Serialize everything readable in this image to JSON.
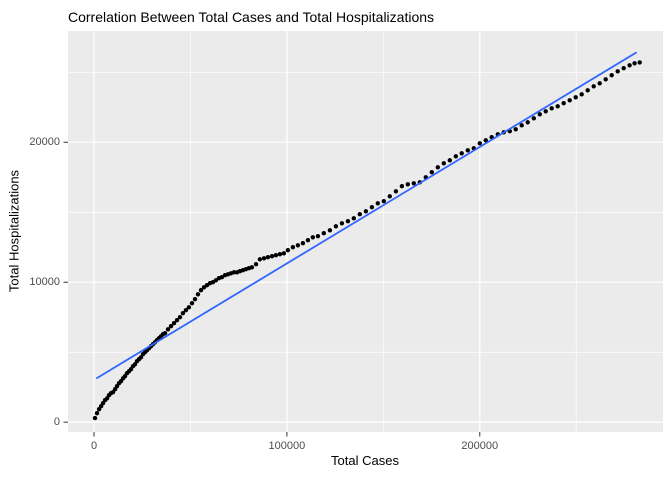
{
  "title": "Correlation Between Total Cases and Total Hospitalizations",
  "axes": {
    "x": {
      "label": "Total Cases",
      "tick_labels": [
        "0",
        "100000",
        "200000"
      ]
    },
    "y": {
      "label": "Total Hospitalizations",
      "tick_labels": [
        "0",
        "10000",
        "20000"
      ]
    }
  },
  "colors": {
    "panel_bg": "#EBEBEB",
    "grid": "#FFFFFF",
    "point": "#000000",
    "fit_line": "#3366FF",
    "tick_text": "#4D4D4D",
    "tick_mark": "#333333",
    "title_text": "#000000"
  },
  "chart_data": {
    "type": "scatter",
    "title": "Correlation Between Total Cases and Total Hospitalizations",
    "xlabel": "Total Cases",
    "ylabel": "Total Hospitalizations",
    "xlim": [
      -13500,
      295000
    ],
    "ylim": [
      -700,
      27950
    ],
    "x_ticks": [
      0,
      100000,
      200000
    ],
    "y_ticks": [
      0,
      10000,
      20000
    ],
    "x_minor_ticks": [
      50000,
      150000,
      250000
    ],
    "y_minor_ticks": [
      5000,
      15000,
      25000
    ],
    "grid": "on",
    "legend": "none",
    "series": [
      {
        "name": "observations",
        "type": "scatter",
        "color": "#000000",
        "points": [
          [
            500,
            290
          ],
          [
            1550,
            640
          ],
          [
            2600,
            930
          ],
          [
            3650,
            1140
          ],
          [
            4650,
            1360
          ],
          [
            5700,
            1570
          ],
          [
            6750,
            1710
          ],
          [
            7770,
            1930
          ],
          [
            8800,
            2070
          ],
          [
            9850,
            2140
          ],
          [
            10900,
            2360
          ],
          [
            11900,
            2570
          ],
          [
            12950,
            2790
          ],
          [
            14000,
            2930
          ],
          [
            15050,
            3140
          ],
          [
            16050,
            3290
          ],
          [
            17100,
            3500
          ],
          [
            18150,
            3640
          ],
          [
            19150,
            3790
          ],
          [
            20200,
            4000
          ],
          [
            21250,
            4140
          ],
          [
            22300,
            4360
          ],
          [
            23300,
            4500
          ],
          [
            24350,
            4640
          ],
          [
            25400,
            4860
          ],
          [
            26400,
            5000
          ],
          [
            27450,
            5140
          ],
          [
            28500,
            5290
          ],
          [
            29550,
            5430
          ],
          [
            30550,
            5570
          ],
          [
            31600,
            5710
          ],
          [
            32650,
            5860
          ],
          [
            33700,
            6000
          ],
          [
            34700,
            6140
          ],
          [
            35750,
            6290
          ],
          [
            36800,
            6360
          ],
          [
            38350,
            6640
          ],
          [
            39900,
            6860
          ],
          [
            41450,
            7070
          ],
          [
            43000,
            7290
          ],
          [
            44550,
            7500
          ],
          [
            46100,
            7790
          ],
          [
            47650,
            8000
          ],
          [
            49200,
            8210
          ],
          [
            50800,
            8500
          ],
          [
            52350,
            8790
          ],
          [
            53900,
            9140
          ],
          [
            55450,
            9430
          ],
          [
            57000,
            9640
          ],
          [
            58550,
            9790
          ],
          [
            60100,
            9930
          ],
          [
            61650,
            10000
          ],
          [
            63200,
            10140
          ],
          [
            64750,
            10290
          ],
          [
            66300,
            10360
          ],
          [
            67900,
            10500
          ],
          [
            69450,
            10570
          ],
          [
            71000,
            10640
          ],
          [
            72550,
            10710
          ],
          [
            74100,
            10710
          ],
          [
            75650,
            10790
          ],
          [
            77200,
            10860
          ],
          [
            78750,
            10930
          ],
          [
            80300,
            11000
          ],
          [
            81850,
            11070
          ],
          [
            83950,
            11290
          ],
          [
            86000,
            11640
          ],
          [
            88100,
            11710
          ],
          [
            90150,
            11790
          ],
          [
            92250,
            11860
          ],
          [
            94300,
            11930
          ],
          [
            96350,
            12000
          ],
          [
            98450,
            12070
          ],
          [
            100500,
            12290
          ],
          [
            103100,
            12500
          ],
          [
            105700,
            12640
          ],
          [
            108300,
            12790
          ],
          [
            110900,
            13000
          ],
          [
            113450,
            13210
          ],
          [
            116050,
            13290
          ],
          [
            119150,
            13500
          ],
          [
            122300,
            13710
          ],
          [
            125400,
            14000
          ],
          [
            128500,
            14210
          ],
          [
            131600,
            14360
          ],
          [
            134700,
            14570
          ],
          [
            137800,
            14860
          ],
          [
            140950,
            15070
          ],
          [
            144050,
            15360
          ],
          [
            147150,
            15640
          ],
          [
            150250,
            15790
          ],
          [
            153350,
            16140
          ],
          [
            156500,
            16500
          ],
          [
            159600,
            16860
          ],
          [
            162700,
            17000
          ],
          [
            165800,
            17070
          ],
          [
            168900,
            17140
          ],
          [
            172000,
            17500
          ],
          [
            175150,
            17860
          ],
          [
            178250,
            18210
          ],
          [
            181350,
            18500
          ],
          [
            184450,
            18710
          ],
          [
            187550,
            19000
          ],
          [
            190650,
            19210
          ],
          [
            193800,
            19430
          ],
          [
            196900,
            19570
          ],
          [
            200000,
            19930
          ],
          [
            203100,
            20140
          ],
          [
            206200,
            20360
          ],
          [
            209350,
            20570
          ],
          [
            212450,
            20710
          ],
          [
            215550,
            20790
          ],
          [
            218650,
            20930
          ],
          [
            221750,
            21210
          ],
          [
            224850,
            21430
          ],
          [
            228000,
            21710
          ],
          [
            231100,
            22000
          ],
          [
            234200,
            22210
          ],
          [
            237300,
            22430
          ],
          [
            240400,
            22570
          ],
          [
            243500,
            22790
          ],
          [
            246650,
            23000
          ],
          [
            249750,
            23210
          ],
          [
            252850,
            23430
          ],
          [
            255950,
            23710
          ],
          [
            259050,
            24000
          ],
          [
            262200,
            24210
          ],
          [
            265300,
            24500
          ],
          [
            268400,
            24790
          ],
          [
            271500,
            25070
          ],
          [
            274600,
            25290
          ],
          [
            277700,
            25500
          ],
          [
            280300,
            25640
          ],
          [
            282900,
            25710
          ]
        ]
      },
      {
        "name": "linear-fit",
        "type": "line",
        "color": "#3366FF",
        "points": [
          [
            1500,
            3150
          ],
          [
            281000,
            26400
          ]
        ]
      }
    ]
  }
}
